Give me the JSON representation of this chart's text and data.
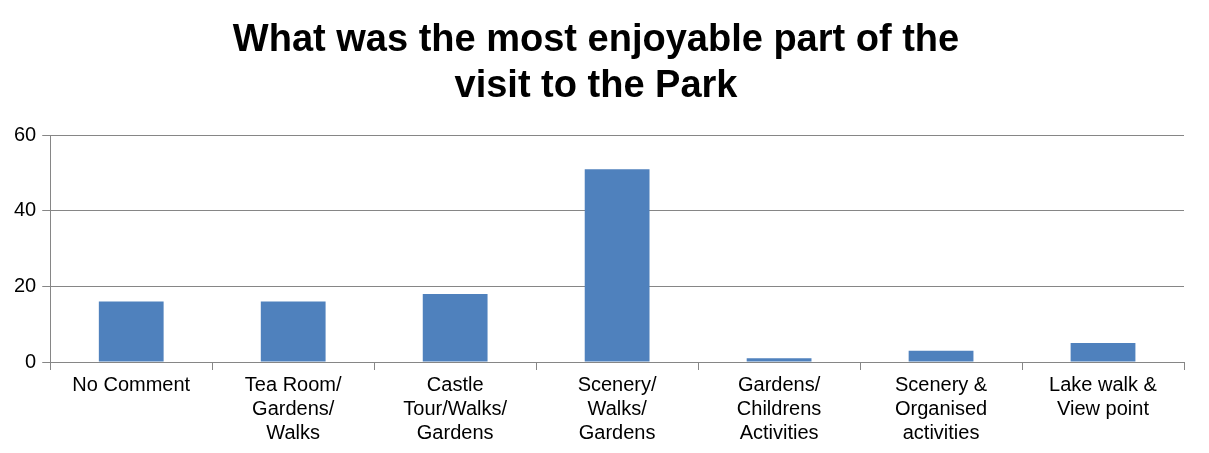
{
  "chart_data": {
    "type": "bar",
    "title": "What was the most enjoyable part of the visit to the Park",
    "categories": [
      "No Comment",
      "Tea Room/ Gardens/ Walks",
      "Castle Tour/Walks/ Gardens",
      "Scenery/ Walks/ Gardens",
      "Gardens/ Childrens Activities",
      "Scenery & Organised activities",
      "Lake walk & View point"
    ],
    "values": [
      16,
      16,
      18,
      51,
      1,
      3,
      5
    ],
    "color": "#4f81bd",
    "ylim": [
      0,
      60
    ],
    "yticks": [
      0,
      20,
      40,
      60
    ],
    "grid": "y",
    "legend": false
  }
}
